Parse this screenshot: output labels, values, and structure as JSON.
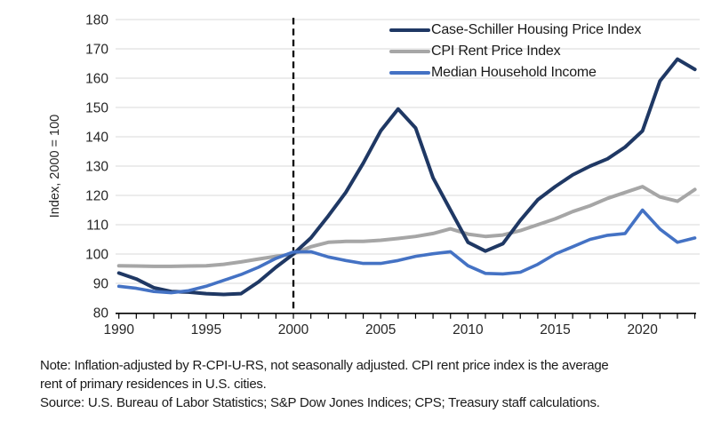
{
  "chart": {
    "y_axis_title": "Index, 2000 = 100",
    "grid_color": "#d9d9d9",
    "axis_color": "#000000",
    "tick_label_color": "#262626",
    "reference_line_color": "#000000"
  },
  "chart_data": {
    "type": "line",
    "x": [
      1990,
      1991,
      1992,
      1993,
      1994,
      1995,
      1996,
      1997,
      1998,
      1999,
      2000,
      2001,
      2002,
      2003,
      2004,
      2005,
      2006,
      2007,
      2008,
      2009,
      2010,
      2011,
      2012,
      2013,
      2014,
      2015,
      2016,
      2017,
      2018,
      2019,
      2020,
      2021,
      2022,
      2023
    ],
    "series": [
      {
        "name": "Case-Schiller Housing Price Index",
        "color": "#1f3864",
        "values": [
          93.5,
          91.5,
          88.5,
          87.2,
          87,
          86.5,
          86.2,
          86.5,
          90.5,
          95.5,
          100,
          105.5,
          113,
          121,
          131,
          142,
          149.5,
          143,
          126,
          115,
          104,
          101,
          103.5,
          111.5,
          118.5,
          123,
          127,
          130,
          132.5,
          136.5,
          142,
          159,
          166.5,
          163
        ]
      },
      {
        "name": "CPI Rent Price Index",
        "color": "#a6a6a6",
        "values": [
          96,
          95.9,
          95.8,
          95.8,
          95.9,
          96,
          96.5,
          97.3,
          98.3,
          99.2,
          100,
          102.5,
          104,
          104.3,
          104.3,
          104.7,
          105.3,
          106,
          107,
          108.6,
          106.8,
          106,
          106.5,
          108,
          110,
          112,
          114.5,
          116.5,
          119,
          121,
          123,
          119.5,
          118,
          122
        ]
      },
      {
        "name": "Median Household Income",
        "color": "#4472c4",
        "values": [
          89,
          88.3,
          87.2,
          86.8,
          87.5,
          89,
          91,
          93,
          95.5,
          98.5,
          100.7,
          100.8,
          99,
          97.8,
          96.8,
          96.8,
          97.8,
          99.2,
          100.1,
          100.8,
          96,
          93.4,
          93.2,
          93.8,
          96.5,
          100,
          102.5,
          105,
          106.4,
          107,
          115,
          108.5,
          104,
          105.5
        ]
      }
    ],
    "title": "",
    "xlabel": "",
    "ylabel": "Index, 2000 = 100",
    "ylim": [
      80,
      180
    ],
    "xlim": [
      1990,
      2023
    ],
    "y_ticks": [
      80,
      90,
      100,
      110,
      120,
      130,
      140,
      150,
      160,
      170,
      180
    ],
    "x_tick_labels": [
      1990,
      1995,
      2000,
      2005,
      2010,
      2015,
      2020
    ],
    "x_minor_tick_step": 1,
    "grid": "horizontal",
    "legend_position": "top-right",
    "annotations": {
      "vline_x": 2000,
      "vline_style": "dashed"
    }
  },
  "notes": {
    "note_line1": "Note: Inflation-adjusted by R-CPI-U-RS, not seasonally adjusted. CPI rent price index is the average",
    "note_line2": "rent of primary residences in U.S. cities.",
    "source": "Source: U.S. Bureau of Labor Statistics; S&P Dow Jones Indices; CPS; Treasury staff calculations."
  }
}
